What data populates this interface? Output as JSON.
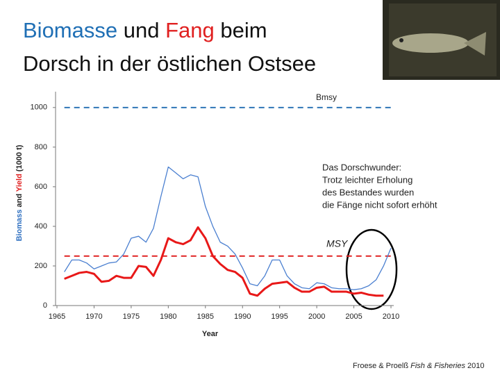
{
  "chart_data": {
    "type": "line",
    "title": [
      [
        {
          "text": "Biomasse",
          "color": "#1f6fb5"
        },
        {
          "text": " und "
        },
        {
          "text": "Fang",
          "color": "#e02020"
        },
        {
          "text": " beim"
        }
      ],
      [
        {
          "text": "Dorsch in der östlichen Ostsee"
        }
      ]
    ],
    "ylabel": [
      {
        "text": "Biomass",
        "color": "#2e6fc0"
      },
      {
        "text": " and "
      },
      {
        "text": "Yield",
        "color": "#e02020"
      },
      {
        "text": " (1000 t)"
      }
    ],
    "xlabel": "Year",
    "x": [
      1966,
      1967,
      1968,
      1969,
      1970,
      1971,
      1972,
      1973,
      1974,
      1975,
      1976,
      1977,
      1978,
      1979,
      1980,
      1981,
      1982,
      1983,
      1984,
      1985,
      1986,
      1987,
      1988,
      1989,
      1990,
      1991,
      1992,
      1993,
      1994,
      1995,
      1996,
      1997,
      1998,
      1999,
      2000,
      2001,
      2002,
      2003,
      2004,
      2005,
      2006,
      2007,
      2008,
      2009,
      2010
    ],
    "series": [
      {
        "color": "#4a7fd0",
        "width": 1.3,
        "values": [
          170,
          230,
          230,
          215,
          185,
          200,
          215,
          220,
          260,
          340,
          350,
          320,
          390,
          550,
          700,
          670,
          640,
          660,
          650,
          500,
          400,
          320,
          300,
          260,
          190,
          110,
          100,
          150,
          230,
          230,
          150,
          110,
          90,
          85,
          115,
          110,
          90,
          85,
          85,
          80,
          85,
          100,
          130,
          200,
          290
        ]
      },
      {
        "color": "#e81818",
        "width": 3,
        "values": [
          135,
          150,
          165,
          170,
          160,
          120,
          125,
          150,
          140,
          140,
          200,
          195,
          150,
          230,
          340,
          320,
          310,
          330,
          395,
          340,
          250,
          210,
          180,
          170,
          140,
          60,
          50,
          85,
          110,
          115,
          120,
          90,
          70,
          70,
          90,
          95,
          70,
          70,
          70,
          60,
          65,
          55,
          50,
          50,
          null
        ]
      }
    ],
    "reference_lines": [
      {
        "name": "Bmsy",
        "value": 1000,
        "color": "#2e75b6"
      },
      {
        "name": "MSY",
        "value": 250,
        "color": "#e02020"
      }
    ],
    "xlim": [
      1965,
      2010
    ],
    "xticks": [
      1965,
      1970,
      1975,
      1980,
      1985,
      1990,
      1995,
      2000,
      2005,
      2010
    ],
    "ylim": [
      0,
      1080
    ],
    "yticks": [
      0,
      200,
      400,
      600,
      800,
      1000
    ],
    "annotation": [
      "Das Dorschwunder:",
      "Trotz leichter Erholung",
      "des Bestandes wurden",
      "die Fänge nicht sofort erhöht"
    ],
    "source": [
      {
        "text": "Froese & Proelß "
      },
      {
        "text": "Fish & Fisheries",
        "italic": true
      },
      {
        "text": " 2010"
      }
    ]
  }
}
